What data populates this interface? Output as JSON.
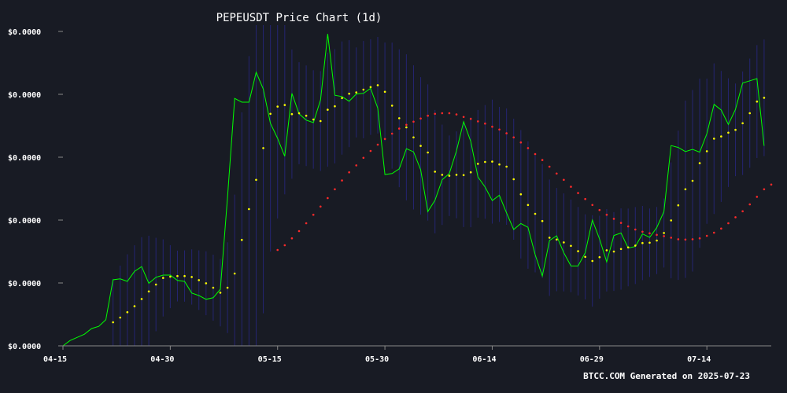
{
  "chart_data": {
    "type": "line",
    "title": "PEPEUSDT Price Chart (1d)",
    "footer": "BTCC.COM Generated on 2025-07-23",
    "xlabel": "",
    "ylabel": "",
    "x_tick_labels": [
      "04-15",
      "04-30",
      "05-15",
      "05-30",
      "06-14",
      "06-29",
      "07-14"
    ],
    "y_tick_labels": [
      "$0.0000",
      "$0.0000",
      "$0.0000",
      "$0.0000",
      "$0.0000",
      "$0.0000"
    ],
    "y_range": [
      0,
      100
    ],
    "x_range": [
      0,
      99
    ],
    "grid": false,
    "legend": "none",
    "colors": {
      "background": "#181b24",
      "price": "#00ff00",
      "ma_short": "#ffff00",
      "ma_long": "#ff2a2a",
      "band": "#26267a",
      "text": "#ffffff",
      "axis": "#888888"
    },
    "series": [
      {
        "values": [
          0.0,
          1.7,
          2.7,
          3.7,
          5.5,
          6.2,
          8.3,
          21.0,
          21.3,
          20.5,
          23.7,
          25.2,
          19.9,
          21.8,
          22.5,
          22.5,
          20.8,
          20.5,
          16.8,
          16.0,
          14.8,
          15.3,
          18.0,
          47.3,
          78.7,
          77.5,
          77.5,
          87.0,
          81.7,
          70.8,
          66.0,
          60.3,
          80.3,
          73.8,
          71.8,
          71.0,
          78.2,
          99.2,
          79.7,
          79.3,
          77.8,
          80.1,
          80.3,
          81.9,
          75.6,
          54.5,
          54.8,
          56.3,
          62.7,
          61.7,
          56.0,
          42.7,
          46.3,
          52.8,
          54.8,
          62.0,
          71.3,
          65.0,
          53.7,
          50.5,
          46.2,
          47.9,
          42.3,
          37.0,
          38.9,
          37.7,
          29.0,
          22.2,
          33.5,
          35.0,
          29.6,
          25.4,
          25.4,
          29.6,
          40.0,
          34.0,
          26.7,
          35.1,
          35.9,
          31.1,
          31.6,
          35.6,
          34.5,
          37.6,
          42.7,
          63.7,
          63.1,
          61.8,
          62.5,
          61.6,
          67.5,
          76.8,
          75.0,
          70.4,
          75.2,
          83.6,
          84.3,
          85.0,
          63.6
        ]
      },
      {
        "values": [
          null,
          null,
          null,
          null,
          null,
          null,
          null,
          null,
          null,
          null,
          null,
          null,
          null,
          null,
          null,
          null,
          null,
          null,
          null,
          null,
          null,
          null,
          null,
          null,
          null,
          null,
          null,
          null,
          null,
          null,
          null,
          null,
          null,
          null,
          null,
          null,
          null,
          null,
          null,
          null,
          null,
          null,
          null,
          null,
          null,
          null,
          null,
          null,
          null,
          null,
          null,
          null,
          null,
          null,
          null,
          null,
          null,
          null,
          null,
          null,
          null,
          null,
          null,
          null,
          null,
          null,
          null,
          null,
          null,
          null,
          null,
          null,
          null,
          null,
          null,
          null,
          null,
          null,
          null,
          null,
          null,
          null,
          null,
          null,
          null,
          null,
          null,
          null,
          null,
          null,
          null,
          null,
          null,
          null,
          null,
          null,
          null,
          null,
          null
        ]
      },
      {
        "values": [
          null,
          null,
          null,
          null,
          null,
          null,
          null,
          7.5,
          9.0,
          10.7,
          12.6,
          14.9,
          17.3,
          19.5,
          21.6,
          22.0,
          22.2,
          22.2,
          21.9,
          20.9,
          19.9,
          18.5,
          16.9,
          18.5,
          23.0,
          33.7,
          43.5,
          52.8,
          62.9,
          73.8,
          76.1,
          76.6,
          73.7,
          74.0,
          73.2,
          72.0,
          71.5,
          75.1,
          76.2,
          78.8,
          80.2,
          80.6,
          81.5,
          82.3,
          82.9,
          80.8,
          76.4,
          72.4,
          69.5,
          66.3,
          63.6,
          61.5,
          55.4,
          54.4,
          54.1,
          54.4,
          54.3,
          55.2,
          57.9,
          58.5,
          58.6,
          57.7,
          57.0,
          53.0,
          48.2,
          44.8,
          42.0,
          39.7,
          34.4,
          33.8,
          32.9,
          31.8,
          30.1,
          28.3,
          27.0,
          28.2,
          30.4,
          30.0,
          30.8,
          31.3,
          31.9,
          32.7,
          32.8,
          33.5,
          35.9,
          39.9,
          44.7,
          49.8,
          52.5,
          58.1,
          61.9,
          65.9,
          66.6,
          67.8,
          68.7,
          70.8,
          74.0,
          77.7,
          78.9
        ]
      },
      {
        "values": [
          null,
          null,
          null,
          null,
          null,
          null,
          null,
          null,
          null,
          null,
          null,
          null,
          null,
          null,
          null,
          null,
          null,
          null,
          null,
          null,
          null,
          null,
          null,
          null,
          null,
          null,
          null,
          null,
          null,
          null,
          30.5,
          32.0,
          34.2,
          36.5,
          39.0,
          41.7,
          44.3,
          47.0,
          49.8,
          52.6,
          55.2,
          57.4,
          59.8,
          62.0,
          64.0,
          65.8,
          67.5,
          69.1,
          70.3,
          71.3,
          72.3,
          73.2,
          73.8,
          74.0,
          74.0,
          73.6,
          72.8,
          72.2,
          71.4,
          70.7,
          69.7,
          68.8,
          67.6,
          66.3,
          64.7,
          62.9,
          61.0,
          59.1,
          57.0,
          54.8,
          52.8,
          50.6,
          48.6,
          46.7,
          44.8,
          43.2,
          41.7,
          40.4,
          39.1,
          38.0,
          37.0,
          36.3,
          35.8,
          35.3,
          34.9,
          34.4,
          33.9,
          33.8,
          33.9,
          34.2,
          35.0,
          36.0,
          37.3,
          39.0,
          40.9,
          42.8,
          45.0,
          47.4,
          49.8,
          51.3
        ]
      }
    ]
  }
}
